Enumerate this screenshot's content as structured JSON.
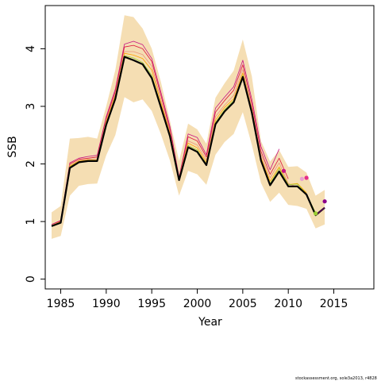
{
  "chart_data": {
    "type": "line",
    "xlabel": "Year",
    "ylabel": "SSB",
    "xlim": [
      1983.3,
      2019.4
    ],
    "ylim": [
      -0.17,
      4.75
    ],
    "x_ticks": [
      1985,
      1990,
      1995,
      2000,
      2005,
      2010,
      2015
    ],
    "x_tick_labels": [
      "1985",
      "1990",
      "1995",
      "2000",
      "2005",
      "2010",
      "2015"
    ],
    "y_ticks": [
      0,
      1,
      2,
      3,
      4
    ],
    "y_tick_labels": [
      "0",
      "1",
      "2",
      "3",
      "4"
    ],
    "grid": false,
    "band": {
      "color": "#f5deb3",
      "x": [
        1984,
        1985,
        1986,
        1987,
        1988,
        1989,
        1990,
        1991,
        1992,
        1993,
        1994,
        1995,
        1996,
        1997,
        1998,
        1999,
        2000,
        2001,
        2002,
        2003,
        2004,
        2005,
        2006,
        2007,
        2008,
        2009,
        2010,
        2011,
        2012,
        2013,
        2014
      ],
      "lower": [
        0.7,
        0.75,
        1.45,
        1.62,
        1.65,
        1.66,
        2.15,
        2.5,
        3.16,
        3.07,
        3.12,
        2.92,
        2.52,
        2.06,
        1.45,
        1.88,
        1.82,
        1.64,
        2.16,
        2.38,
        2.52,
        2.9,
        2.33,
        1.67,
        1.34,
        1.5,
        1.29,
        1.27,
        1.22,
        0.88,
        0.95
      ],
      "upper": [
        1.16,
        1.27,
        2.44,
        2.45,
        2.47,
        2.44,
        3.0,
        3.63,
        4.58,
        4.55,
        4.35,
        4.0,
        3.43,
        2.75,
        2.05,
        2.7,
        2.6,
        2.35,
        3.15,
        3.4,
        3.62,
        4.16,
        3.52,
        2.4,
        2.04,
        2.24,
        1.95,
        1.96,
        1.85,
        1.45,
        1.55
      ]
    },
    "series": [
      {
        "color": "#c71585",
        "width": 0.8,
        "x": [
          1984,
          1985,
          1986,
          1987,
          1988,
          1989,
          1990,
          1991,
          1992,
          1993,
          1994,
          1995,
          1996,
          1997,
          1998,
          1999,
          2000,
          2001,
          2002,
          2003,
          2004,
          2005,
          2006,
          2007,
          2008,
          2009
        ],
        "y": [
          0.95,
          1.02,
          2.02,
          2.1,
          2.13,
          2.15,
          2.82,
          3.3,
          4.08,
          4.13,
          4.07,
          3.83,
          3.25,
          2.65,
          1.77,
          2.52,
          2.46,
          2.16,
          2.97,
          3.16,
          3.34,
          3.8,
          3.12,
          2.3,
          1.9,
          2.26
        ]
      },
      {
        "color": "#dc143c",
        "width": 0.8,
        "x": [
          1984,
          1985,
          1986,
          1987,
          1988,
          1989,
          1990,
          1991,
          1992,
          1993,
          1994,
          1995,
          1996,
          1997,
          1998,
          1999,
          2000,
          2001,
          2002,
          2003,
          2004,
          2005,
          2006,
          2007,
          2008,
          2009,
          2010
        ],
        "y": [
          0.94,
          1.01,
          2.0,
          2.08,
          2.1,
          2.12,
          2.79,
          3.26,
          4.03,
          4.06,
          4.0,
          3.78,
          3.2,
          2.6,
          1.76,
          2.47,
          2.4,
          2.12,
          2.9,
          3.1,
          3.28,
          3.72,
          3.05,
          2.22,
          1.82,
          2.1,
          1.74
        ]
      },
      {
        "color": "#e9967a",
        "width": 0.8,
        "x": [
          1984,
          1985,
          1986,
          1987,
          1988,
          1989,
          1990,
          1991,
          1992,
          1993,
          1994,
          1995,
          1996,
          1997,
          1998,
          1999,
          2000,
          2001,
          2002,
          2003,
          2004,
          2005,
          2006,
          2007,
          2008,
          2009,
          2010,
          2011
        ],
        "y": [
          0.94,
          1.0,
          1.98,
          2.06,
          2.08,
          2.09,
          2.76,
          3.22,
          3.95,
          3.95,
          3.9,
          3.7,
          3.12,
          2.56,
          1.75,
          2.4,
          2.33,
          2.07,
          2.82,
          3.02,
          3.19,
          3.64,
          2.98,
          2.16,
          1.76,
          2.02,
          1.66,
          1.6
        ]
      },
      {
        "color": "#ffa500",
        "width": 0.8,
        "x": [
          1984,
          1985,
          1986,
          1987,
          1988,
          1989,
          1990,
          1991,
          1992,
          1993,
          1994,
          1995,
          1996,
          1997,
          1998,
          1999,
          2000,
          2001,
          2002,
          2003,
          2004,
          2005,
          2006,
          2007,
          2008,
          2009,
          2010,
          2011,
          2012
        ],
        "y": [
          0.93,
          1.0,
          1.96,
          2.05,
          2.07,
          2.07,
          2.73,
          3.19,
          3.92,
          3.89,
          3.83,
          3.63,
          3.07,
          2.53,
          1.74,
          2.36,
          2.28,
          2.03,
          2.76,
          2.98,
          3.13,
          3.58,
          2.94,
          2.11,
          1.7,
          1.95,
          1.64,
          1.66,
          1.5
        ]
      },
      {
        "color": "#9acd32",
        "width": 0.8,
        "x": [
          1984,
          1985,
          1986,
          1987,
          1988,
          1989,
          1990,
          1991,
          1992,
          1993,
          1994,
          1995,
          1996,
          1997,
          1998,
          1999,
          2000,
          2001,
          2002,
          2003,
          2004,
          2005,
          2006,
          2007,
          2008,
          2009,
          2010,
          2011,
          2012,
          2013
        ],
        "y": [
          0.93,
          0.99,
          1.95,
          2.04,
          2.06,
          2.06,
          2.7,
          3.16,
          3.88,
          3.84,
          3.76,
          3.54,
          3.02,
          2.5,
          1.73,
          2.32,
          2.24,
          2.0,
          2.72,
          2.94,
          3.1,
          3.54,
          2.92,
          2.08,
          1.66,
          1.92,
          1.64,
          1.65,
          1.48,
          1.15
        ]
      },
      {
        "color": "#000000",
        "width": 2.2,
        "x": [
          1984,
          1985,
          1986,
          1987,
          1988,
          1989,
          1990,
          1991,
          1992,
          1993,
          1994,
          1995,
          1996,
          1997,
          1998,
          1999,
          2000,
          2001,
          2002,
          2003,
          2004,
          2005,
          2006,
          2007,
          2008,
          2009,
          2010,
          2011,
          2012,
          2013,
          2014
        ],
        "y": [
          0.92,
          0.98,
          1.93,
          2.03,
          2.05,
          2.05,
          2.68,
          3.13,
          3.86,
          3.8,
          3.73,
          3.49,
          2.99,
          2.48,
          1.72,
          2.29,
          2.21,
          1.98,
          2.69,
          2.91,
          3.07,
          3.51,
          2.89,
          2.06,
          1.63,
          1.87,
          1.61,
          1.61,
          1.47,
          1.11,
          1.24
        ]
      },
      {
        "color": "#8b008b",
        "width": 0.8,
        "x": [
          2013,
          2014
        ],
        "y": [
          1.11,
          1.24
        ]
      }
    ],
    "points": [
      {
        "x": 2009.5,
        "y": 1.88,
        "color": "#c71585"
      },
      {
        "x": 2011.5,
        "y": 1.74,
        "color": "#e9a0d0"
      },
      {
        "x": 2012.0,
        "y": 1.76,
        "color": "#e62e8a"
      },
      {
        "x": 2013.0,
        "y": 1.14,
        "color": "#9acd32"
      },
      {
        "x": 2014.0,
        "y": 1.35,
        "color": "#8b008b"
      }
    ],
    "frame_color": "#000000"
  },
  "footer": {
    "credit": "stockassessment.org, sole3a2013, r4828"
  }
}
